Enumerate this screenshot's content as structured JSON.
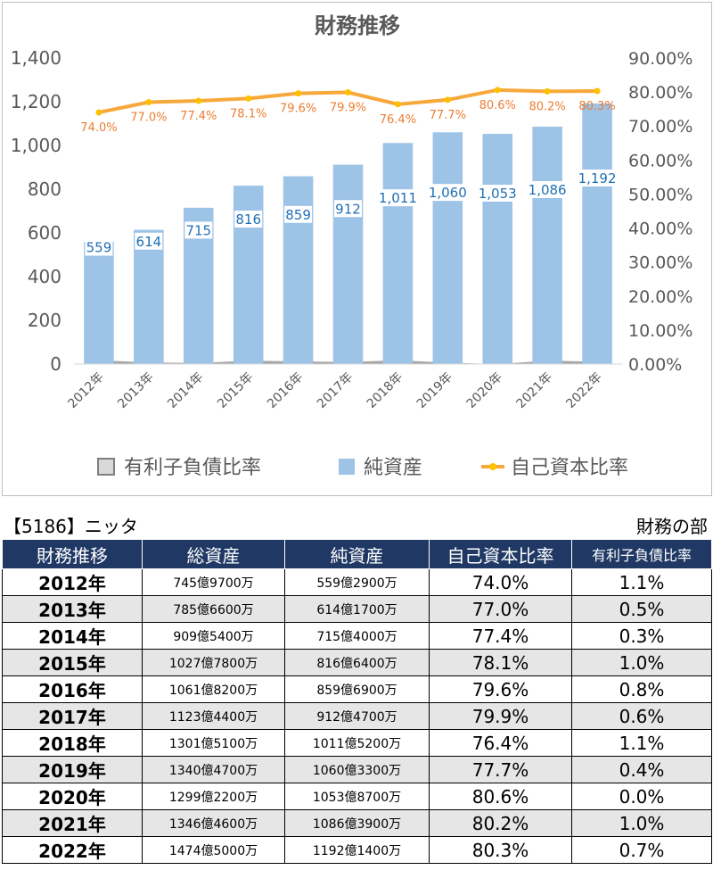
{
  "chart_data": {
    "type": "bar",
    "title": "財務推移",
    "categories": [
      "2012年",
      "2013年",
      "2014年",
      "2015年",
      "2016年",
      "2017年",
      "2018年",
      "2019年",
      "2020年",
      "2021年",
      "2022年"
    ],
    "series": [
      {
        "name": "有利子負債比率",
        "type": "area",
        "axis": "right",
        "color": "#a6a6a6",
        "values": [
          1.1,
          0.5,
          0.3,
          1.0,
          0.8,
          0.6,
          1.1,
          0.4,
          0.0,
          1.0,
          0.7
        ]
      },
      {
        "name": "純資産",
        "type": "bar",
        "axis": "left",
        "color": "#9dc3e6",
        "values": [
          559,
          614,
          715,
          816,
          859,
          912,
          1011,
          1060,
          1053,
          1086,
          1192
        ],
        "labels": [
          "559",
          "614",
          "715",
          "816",
          "859",
          "912",
          "1,011",
          "1,060",
          "1,053",
          "1,086",
          "1,192"
        ]
      },
      {
        "name": "自己資本比率",
        "type": "line",
        "axis": "right",
        "color": "#f7a83a",
        "values": [
          74.0,
          77.0,
          77.4,
          78.1,
          79.6,
          79.9,
          76.4,
          77.7,
          80.6,
          80.2,
          80.3
        ],
        "labels": [
          "74.0%",
          "77.0%",
          "77.4%",
          "78.1%",
          "79.6%",
          "79.9%",
          "76.4%",
          "77.7%",
          "80.6%",
          "80.2%",
          "80.3%"
        ]
      }
    ],
    "ylim_left": [
      0,
      1400
    ],
    "yticks_left": [
      "0",
      "200",
      "400",
      "600",
      "800",
      "1,000",
      "1,200",
      "1,400"
    ],
    "ylim_right": [
      0,
      90
    ],
    "yticks_right": [
      "0.00%",
      "10.00%",
      "20.00%",
      "30.00%",
      "40.00%",
      "50.00%",
      "60.00%",
      "70.00%",
      "80.00%",
      "90.00%"
    ],
    "legend_position": "bottom",
    "grid": false
  },
  "caption": {
    "company": "【5186】ニッタ",
    "section": "財務の部"
  },
  "table": {
    "headers": [
      "財務推移",
      "総資産",
      "純資産",
      "自己資本比率",
      "有利子負債比率"
    ],
    "rows": [
      [
        "2012年",
        "745億9700万",
        "559億2900万",
        "74.0%",
        "1.1%"
      ],
      [
        "2013年",
        "785億6600万",
        "614億1700万",
        "77.0%",
        "0.5%"
      ],
      [
        "2014年",
        "909億5400万",
        "715億4000万",
        "77.4%",
        "0.3%"
      ],
      [
        "2015年",
        "1027億7800万",
        "816億6400万",
        "78.1%",
        "1.0%"
      ],
      [
        "2016年",
        "1061億8200万",
        "859億6900万",
        "79.6%",
        "0.8%"
      ],
      [
        "2017年",
        "1123億4400万",
        "912億4700万",
        "79.9%",
        "0.6%"
      ],
      [
        "2018年",
        "1301億5100万",
        "1011億5200万",
        "76.4%",
        "1.1%"
      ],
      [
        "2019年",
        "1340億4700万",
        "1060億3300万",
        "77.7%",
        "0.4%"
      ],
      [
        "2020年",
        "1299億2200万",
        "1053億8700万",
        "80.6%",
        "0.0%"
      ],
      [
        "2021年",
        "1346億4600万",
        "1086億3900万",
        "80.2%",
        "1.0%"
      ],
      [
        "2022年",
        "1474億5000万",
        "1192億1400万",
        "80.3%",
        "0.7%"
      ]
    ]
  }
}
